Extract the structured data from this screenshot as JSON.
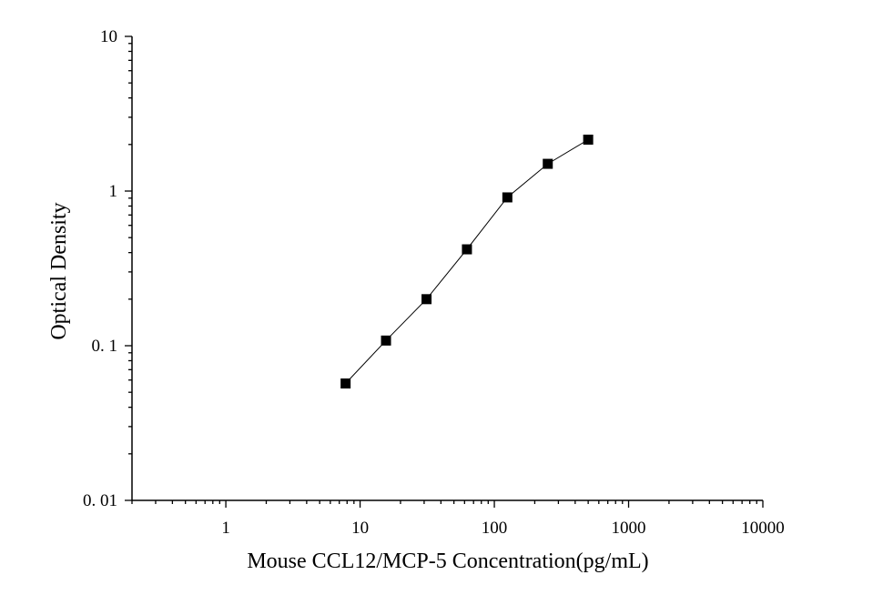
{
  "chart_data": {
    "type": "scatter",
    "title": "",
    "xlabel": "Mouse CCL12/MCP-5 Concentration(pg/mL)",
    "ylabel": "Optical Density",
    "xscale": "log",
    "yscale": "log",
    "xlim": [
      0.2,
      10000
    ],
    "ylim": [
      0.01,
      10
    ],
    "x_ticks": [
      1,
      10,
      100,
      1000,
      10000
    ],
    "x_tick_labels": [
      "1",
      "10",
      "100",
      "1000",
      "10000"
    ],
    "y_ticks": [
      0.01,
      0.1,
      1,
      10
    ],
    "y_tick_labels": [
      "0. 01",
      "0. 1",
      "1",
      "10"
    ],
    "grid": false,
    "legend": "none",
    "series": [
      {
        "marker": "square",
        "line": "connected",
        "color": "#000000",
        "x": [
          7.8,
          15.6,
          31.25,
          62.5,
          125,
          250,
          500
        ],
        "y": [
          0.057,
          0.108,
          0.2,
          0.42,
          0.91,
          1.5,
          2.15
        ]
      }
    ]
  }
}
